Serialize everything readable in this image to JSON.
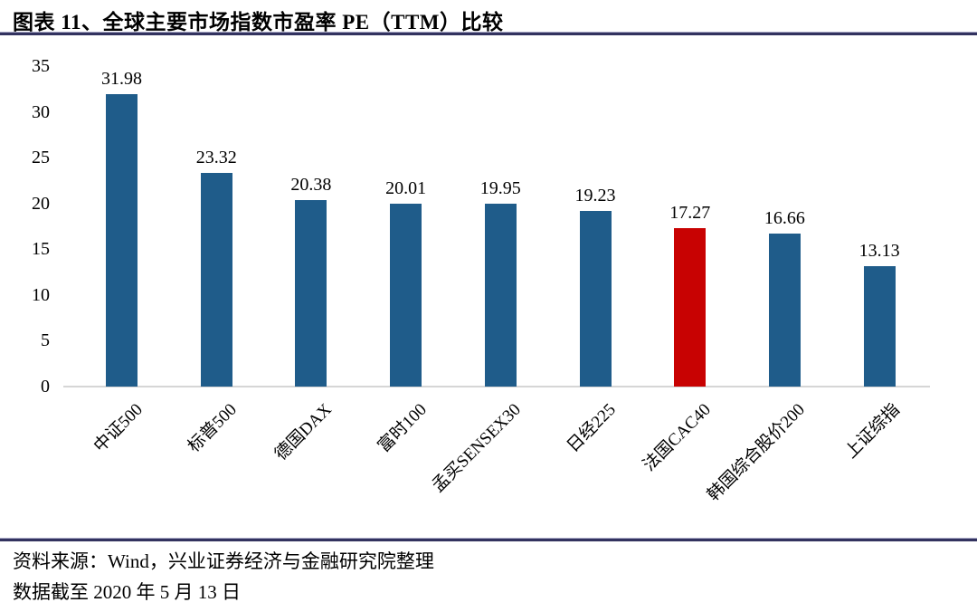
{
  "header": {
    "title": "图表 11、全球主要市场指数市盈率 PE（TTM）比较"
  },
  "footer": {
    "source": "资料来源：Wind，兴业证券经济与金融研究院整理",
    "data_date": "数据截至 2020 年 5 月 13 日"
  },
  "colors": {
    "bar": "#1F5C8A",
    "highlight": "#C80202",
    "divider_dark": "#32325F",
    "divider_light": "#A9A9C6",
    "baseline": "#D6D6D6",
    "text": "#000000"
  },
  "chart_data": {
    "type": "bar",
    "title": "全球主要市场指数市盈率 PE（TTM）比较",
    "categories": [
      "中证500",
      "标普500",
      "德国DAX",
      "富时100",
      "孟买SENSEX30",
      "日经225",
      "法国CAC40",
      "韩国综合股价200",
      "上证综指"
    ],
    "values": [
      31.98,
      23.32,
      20.38,
      20.01,
      19.95,
      19.23,
      17.27,
      16.66,
      13.13
    ],
    "value_labels": [
      "31.98",
      "23.32",
      "20.38",
      "20.01",
      "19.95",
      "19.23",
      "17.27",
      "16.66",
      "13.13"
    ],
    "highlight_index": 6,
    "yticks": [
      0,
      5,
      10,
      15,
      20,
      25,
      30,
      35
    ],
    "ylim": [
      0,
      35
    ],
    "xlabel": "",
    "ylabel": "",
    "grid": false,
    "legend": "none",
    "xtick_rotation_deg": 45
  }
}
